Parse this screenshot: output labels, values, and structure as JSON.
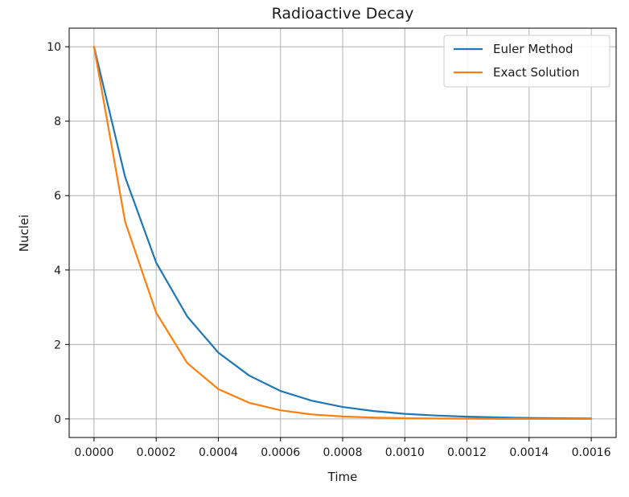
{
  "chart_data": {
    "type": "line",
    "title": "Radioactive Decay",
    "xlabel": "Time",
    "ylabel": "Nuclei",
    "xlim": [
      -8e-05,
      0.00168
    ],
    "ylim": [
      -0.5,
      10.5
    ],
    "x_ticks": [
      0,
      0.0002,
      0.0004,
      0.0006,
      0.0008,
      0.001,
      0.0012,
      0.0014,
      0.0016
    ],
    "x_tick_labels": [
      "0.0000",
      "0.0002",
      "0.0004",
      "0.0006",
      "0.0008",
      "0.0010",
      "0.0012",
      "0.0014",
      "0.0016"
    ],
    "y_ticks": [
      0,
      2,
      4,
      6,
      8,
      10
    ],
    "y_tick_labels": [
      "0",
      "2",
      "4",
      "6",
      "8",
      "10"
    ],
    "grid": true,
    "legend": {
      "placement": "top-right"
    },
    "series": [
      {
        "name": "Euler Method",
        "color": "#1f77b4",
        "x": [
          0,
          0.0001,
          0.0002,
          0.0003,
          0.0004,
          0.0005,
          0.0006,
          0.0007,
          0.0008,
          0.0009,
          0.001,
          0.0011,
          0.0012,
          0.0013,
          0.0014,
          0.0015,
          0.0016
        ],
        "y": [
          10,
          6.5,
          4.2,
          2.75,
          1.78,
          1.16,
          0.75,
          0.49,
          0.32,
          0.21,
          0.135,
          0.09,
          0.06,
          0.04,
          0.025,
          0.017,
          0.01
        ]
      },
      {
        "name": "Exact Solution",
        "color": "#ff7f0e",
        "x": [
          0,
          0.0001,
          0.0002,
          0.0003,
          0.0004,
          0.0005,
          0.0006,
          0.0007,
          0.0008,
          0.0009,
          0.001,
          0.0011,
          0.0012,
          0.0013,
          0.0014,
          0.0015,
          0.0016
        ],
        "y": [
          10,
          5.3,
          2.85,
          1.5,
          0.8,
          0.43,
          0.23,
          0.12,
          0.065,
          0.035,
          0.018,
          0.01,
          0.005,
          0.003,
          0.0015,
          0.0008,
          0.0004
        ]
      }
    ]
  }
}
